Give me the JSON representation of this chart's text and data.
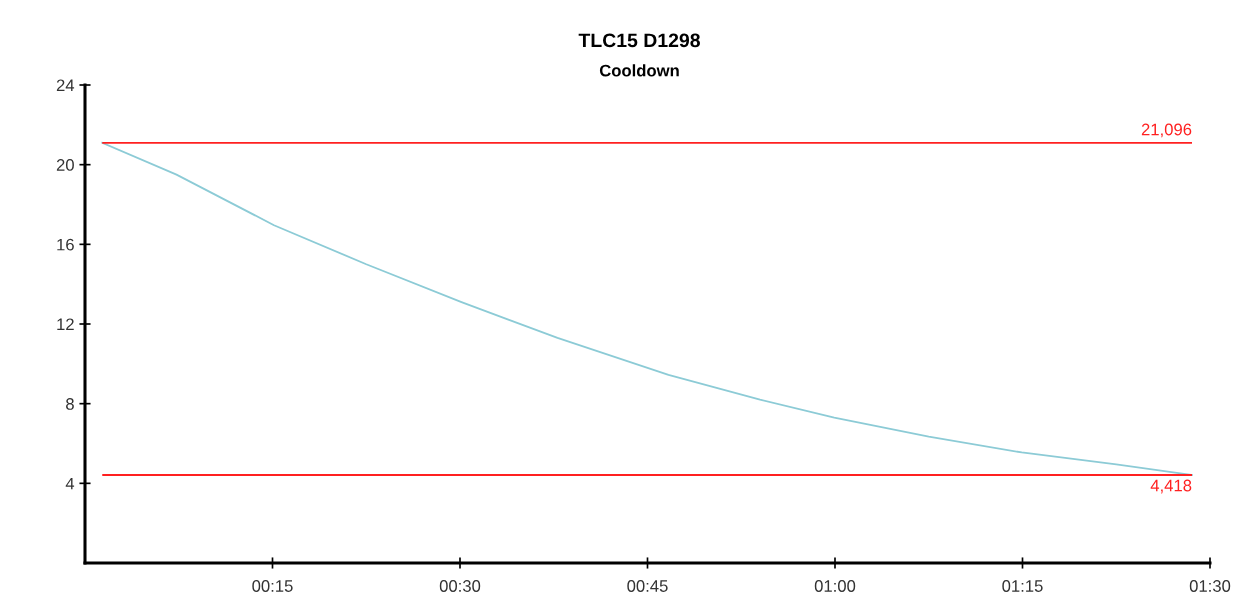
{
  "chart_data": {
    "type": "line",
    "title": "TLC15 D1298",
    "subtitle": "Cooldown",
    "x": [
      0.023,
      0.122,
      0.252,
      0.375,
      0.502,
      0.63,
      0.778,
      0.9,
      0.999,
      1.125,
      1.249,
      1.375,
      1.476
    ],
    "series": [
      {
        "color": "#8ccbd6",
        "values": [
          21.1,
          19.5,
          16.96,
          15.0,
          13.1,
          11.3,
          9.45,
          8.2,
          7.3,
          6.35,
          5.55,
          4.95,
          4.42
        ]
      }
    ],
    "xlim": [
      0,
      1.5
    ],
    "xticks": [
      {
        "value": 0.25,
        "label": "00:15"
      },
      {
        "value": 0.5,
        "label": "00:30"
      },
      {
        "value": 0.75,
        "label": "00:45"
      },
      {
        "value": 1.0,
        "label": "01:00"
      },
      {
        "value": 1.25,
        "label": "01:15"
      },
      {
        "value": 1.5,
        "label": "01:30"
      }
    ],
    "ylim": [
      0,
      24
    ],
    "yticks": [
      4,
      8,
      12,
      16,
      20,
      24
    ],
    "ref_lines": [
      {
        "axis": "y",
        "value": 21.096,
        "label": "21,096",
        "color": "#ff2020"
      },
      {
        "axis": "y",
        "value": 4.418,
        "label": "4,418",
        "color": "#ff2020"
      }
    ],
    "grid": false,
    "marker": "none",
    "line_style": "solid"
  }
}
